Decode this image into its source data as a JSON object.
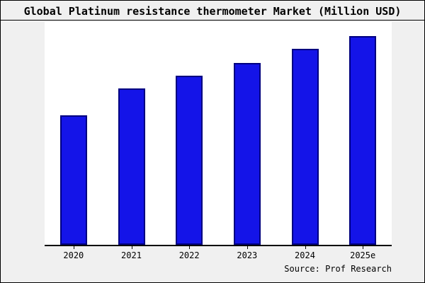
{
  "chart_data": {
    "type": "bar",
    "title": "Global Platinum resistance thermometer Market (Million USD)",
    "categories": [
      "2020",
      "2021",
      "2022",
      "2023",
      "2024",
      "2025e"
    ],
    "values": [
      62,
      75,
      81,
      87,
      94,
      100
    ],
    "value_units": "relative bar height, % of tallest bar (y-axis has no tick labels)",
    "xlabel": "",
    "ylabel": "",
    "ylim": null,
    "grid": false,
    "legend": false,
    "bar_color": "#1414e8",
    "bar_border_color": "#000080",
    "plot_background": "#ffffff",
    "outer_background": "#f0f0f0"
  },
  "source": {
    "label": "Source: Prof Research"
  }
}
